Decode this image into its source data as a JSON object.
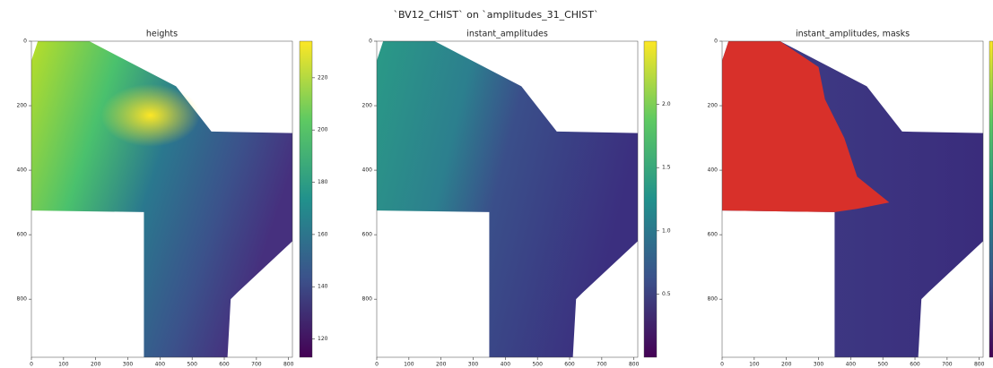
{
  "title": "`BV12_CHIST` on `amplitudes_31_CHIST`",
  "chart_data": [
    {
      "type": "image",
      "title": "heights",
      "xlim": [
        0,
        812
      ],
      "ylim": [
        980,
        0
      ],
      "xticks": [
        0,
        100,
        200,
        300,
        400,
        500,
        600,
        700,
        800
      ],
      "yticks": [
        0,
        200,
        400,
        600,
        800
      ],
      "colorbar": {
        "cmap": "viridis",
        "clim": [
          113,
          234
        ],
        "ticks": [
          120,
          140,
          160,
          180,
          200,
          220
        ]
      }
    },
    {
      "type": "image",
      "title": "instant_amplitudes",
      "xlim": [
        0,
        812
      ],
      "ylim": [
        980,
        0
      ],
      "xticks": [
        0,
        100,
        200,
        300,
        400,
        500,
        600,
        700,
        800
      ],
      "yticks": [
        0,
        200,
        400,
        600,
        800
      ],
      "colorbar": {
        "cmap": "viridis",
        "clim": [
          0,
          2.5
        ],
        "ticks": [
          0.5,
          {
            "value": 1,
            "label": "1.0"
          },
          1.5,
          {
            "value": 2,
            "label": "2.0"
          }
        ]
      }
    },
    {
      "type": "image",
      "title": "instant_amplitudes, masks",
      "xlim": [
        0,
        812
      ],
      "ylim": [
        980,
        0
      ],
      "xticks": [
        0,
        100,
        200,
        300,
        400,
        500,
        600,
        700,
        800
      ],
      "yticks": [
        0,
        200,
        400,
        600,
        800
      ],
      "mask_color": "#d8302a",
      "colorbar": {
        "cmap": "viridis"
      }
    }
  ]
}
